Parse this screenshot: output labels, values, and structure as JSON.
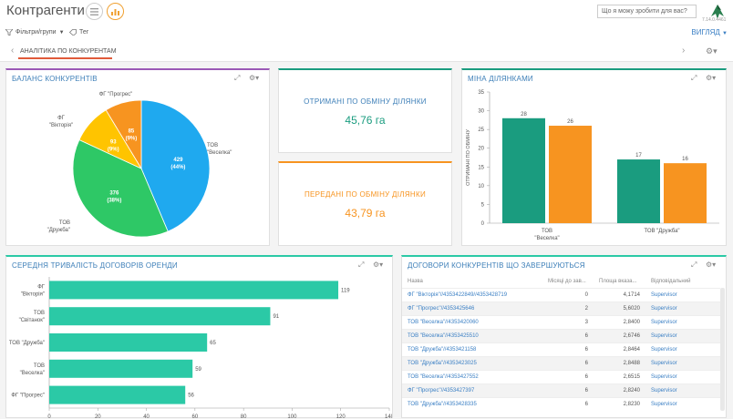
{
  "app": {
    "title": "Контрагенти",
    "help_placeholder": "Що я можу зробити для вас?",
    "version": "7.14.0.4461"
  },
  "toolbar": {
    "filters_label": "Фільтри/групи",
    "tag_label": "Тег",
    "view_label": "ВИГЛЯД"
  },
  "tab": {
    "label": "АНАЛІТИКА ПО КОНКУРЕНТАМ"
  },
  "colors": {
    "teal": "#2bc9a6",
    "green": "#1a9c7f",
    "orange": "#f79420",
    "blue": "#1fa9ef",
    "pie_green": "#2ec866",
    "pie_yellow": "#ffc400"
  },
  "panels": {
    "balance": {
      "title": "БАЛАНС КОНКУРЕНТІВ"
    },
    "received": {
      "label": "ОТРИМАНІ ПО ОБМІНУ ДІЛЯНКИ",
      "value": "45,76 га"
    },
    "transferred": {
      "label": "ПЕРЕДАНІ ПО ОБМІНУ ДІЛЯНКИ",
      "value": "43,79 га"
    },
    "exchange": {
      "title": "МІНА ДІЛЯНКАМИ"
    },
    "duration": {
      "title": "СЕРЕДНЯ ТРИВАЛІСТЬ ДОГОВОРІВ ОРЕНДИ"
    },
    "contracts": {
      "title": "ДОГОВОРИ КОНКУРЕНТІВ ЩО ЗАВЕРШУЮТЬСЯ",
      "columns": [
        "Назва",
        "Місяці до зав...",
        "Площа вказа...",
        "Відповідальний"
      ],
      "rows": [
        [
          "ФГ \"Вікторія\"//4353422849//4353428719",
          "0",
          "4,1714",
          "Supervisor"
        ],
        [
          "ФГ \"Прогрес\"//4353425646",
          "2",
          "5,6020",
          "Supervisor"
        ],
        [
          "ТОВ \"Веселка\"//4353420060",
          "3",
          "2,8400",
          "Supervisor"
        ],
        [
          "ТОВ \"Веселка\"//4353425510",
          "6",
          "2,6746",
          "Supervisor"
        ],
        [
          "ТОВ \"Дружба\"//4353421158",
          "6",
          "2,8464",
          "Supervisor"
        ],
        [
          "ТОВ \"Дружба\"//4353423025",
          "6",
          "2,8488",
          "Supervisor"
        ],
        [
          "ТОВ \"Веселка\"//4353427552",
          "6",
          "2,6515",
          "Supervisor"
        ],
        [
          "ФГ \"Прогрес\"//4353427397",
          "6",
          "2,8240",
          "Supervisor"
        ],
        [
          "ТОВ \"Дружба\"//4353428335",
          "6",
          "2,8230",
          "Supervisor"
        ]
      ]
    }
  },
  "chart_data": [
    {
      "type": "pie",
      "title": "БАЛАНС КОНКУРЕНТІВ",
      "slices": [
        {
          "label": "ТОВ \"Веселка\"",
          "value": 429,
          "percent": "44%",
          "color": "#1fa9ef"
        },
        {
          "label": "ТОВ \"Дружба\"",
          "value": 376,
          "percent": "38%",
          "color": "#2ec866"
        },
        {
          "label": "ФГ \"Вікторія\"",
          "value": 93,
          "percent": "9%",
          "color": "#ffc400"
        },
        {
          "label": "ФГ \"Прогрес\"",
          "value": 85,
          "percent": "9%",
          "color": "#f79420"
        }
      ]
    },
    {
      "type": "bar",
      "title": "МІНА ДІЛЯНКАМИ",
      "ylabel": "ОТРИМАНІ ПО ОБМІНУ",
      "categories": [
        "ТОВ \"Веселка\"",
        "ТОВ \"Дружба\""
      ],
      "series": [
        {
          "values": [
            28,
            17
          ],
          "color": "#1a9c7f"
        },
        {
          "values": [
            26,
            16
          ],
          "color": "#f79420"
        }
      ],
      "ylim": [
        0,
        35
      ],
      "yticks": [
        0,
        5,
        10,
        15,
        20,
        25,
        30,
        35
      ]
    },
    {
      "type": "bar",
      "orientation": "horizontal",
      "title": "СЕРЕДНЯ ТРИВАЛІСТЬ ДОГОВОРІВ ОРЕНДИ",
      "categories": [
        "ФГ \"Вікторія\"",
        "ТОВ \"Світанок\"",
        "ТОВ \"Дружба\"",
        "ТОВ \"Веселка\"",
        "ФГ \"Прогрес\""
      ],
      "values": [
        119,
        91,
        65,
        59,
        56
      ],
      "xlim": [
        0,
        140
      ],
      "xticks": [
        0,
        20,
        40,
        60,
        80,
        100,
        120,
        140
      ],
      "color": "#2bc9a6"
    }
  ]
}
